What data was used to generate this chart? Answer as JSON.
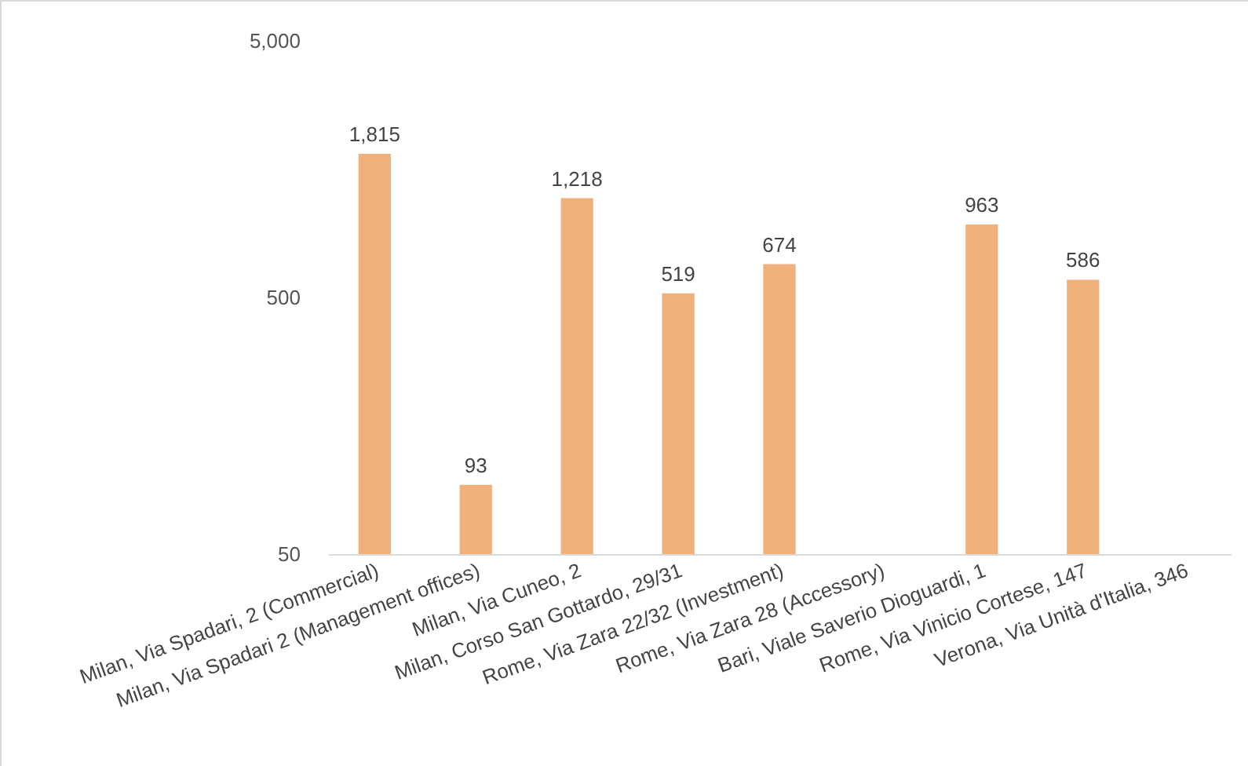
{
  "chart_data": {
    "type": "bar",
    "categories": [
      "Milan, Via Spadari, 2 (Commercial)",
      "Milan, Via Spadari 2 (Management offices)",
      "Milan, Via Cuneo, 2",
      "Milan, Corso San Gottardo, 29/31",
      "Rome, Via Zara 22/32 (Investment)",
      "Rome, Via Zara 28 (Accessory)",
      "Bari, Viale Saverio Dioguardi, 1",
      "Rome, Via Vinicio Cortese, 147",
      "Verona, Via Unità d'Italia, 346"
    ],
    "values": [
      1815,
      93,
      1218,
      519,
      674,
      null,
      963,
      586,
      null
    ],
    "value_labels": [
      "1,815",
      "93",
      "1,218",
      "519",
      "674",
      null,
      "963",
      "586",
      null
    ],
    "color": "#f0b07c",
    "log": true,
    "ylim": [
      50,
      5000
    ],
    "yticks": [
      50,
      500,
      {
        "value": 5000,
        "label": "5,000"
      }
    ],
    "grid": false
  }
}
